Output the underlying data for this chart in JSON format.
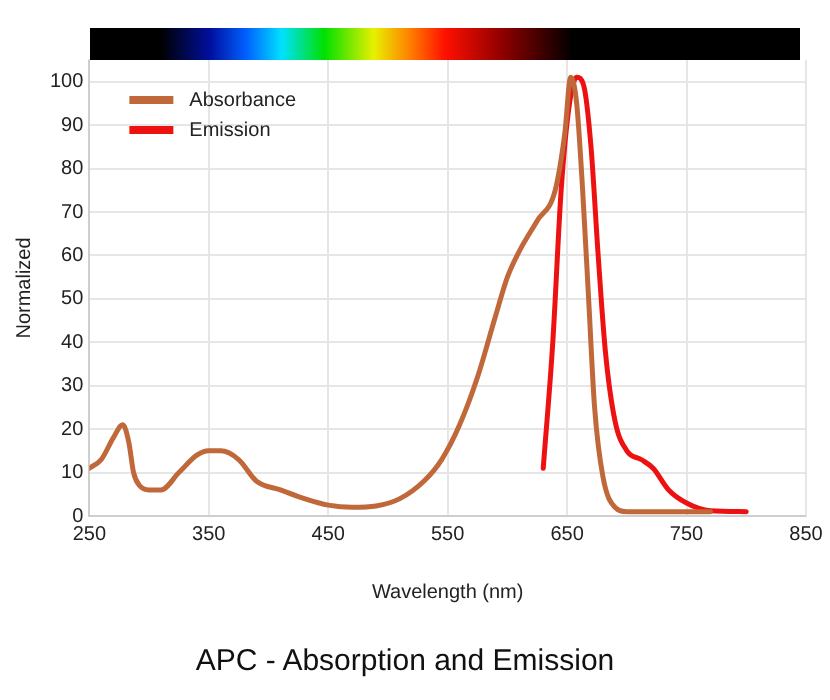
{
  "chart_data": {
    "type": "line",
    "title": "APC - Absorption and Emission",
    "xlabel": "Wavelength (nm)",
    "ylabel": "Normalized",
    "xlim": [
      250,
      850
    ],
    "xticks": [
      250,
      350,
      450,
      550,
      650,
      750,
      850
    ],
    "ylim": [
      0,
      105
    ],
    "yticks": [
      0,
      10,
      20,
      30,
      40,
      50,
      60,
      70,
      80,
      90,
      100
    ],
    "grid": true,
    "legend": "top left",
    "marker": "none",
    "series": [
      {
        "name": "Absorbance",
        "color": "#c0683a",
        "x": [
          250,
          260,
          270,
          278,
          283,
          287,
          292,
          300,
          310,
          325,
          340,
          350,
          360,
          375,
          390,
          410,
          430,
          450,
          470,
          490,
          510,
          530,
          545,
          560,
          575,
          590,
          600,
          610,
          625,
          640,
          648,
          653,
          658,
          663,
          668,
          673,
          680,
          690,
          700,
          750,
          770
        ],
        "values": [
          11,
          13,
          18,
          21,
          17,
          10,
          7,
          6,
          6,
          10,
          14,
          15,
          15,
          13,
          8,
          6,
          4,
          2.5,
          2,
          2.3,
          4,
          8,
          13,
          21,
          32,
          46,
          55,
          61,
          68,
          75,
          88,
          101,
          95,
          75,
          50,
          25,
          9,
          2,
          1,
          1,
          1
        ]
      },
      {
        "name": "Emission",
        "color": "#ee1111",
        "x": [
          630,
          638,
          645,
          652,
          658,
          664,
          670,
          676,
          682,
          690,
          700,
          712,
          722,
          735,
          750,
          770,
          800
        ],
        "values": [
          11,
          40,
          75,
          95,
          101,
          99,
          85,
          60,
          38,
          22,
          15,
          13,
          11,
          6,
          3,
          1.2,
          1
        ]
      }
    ]
  }
}
